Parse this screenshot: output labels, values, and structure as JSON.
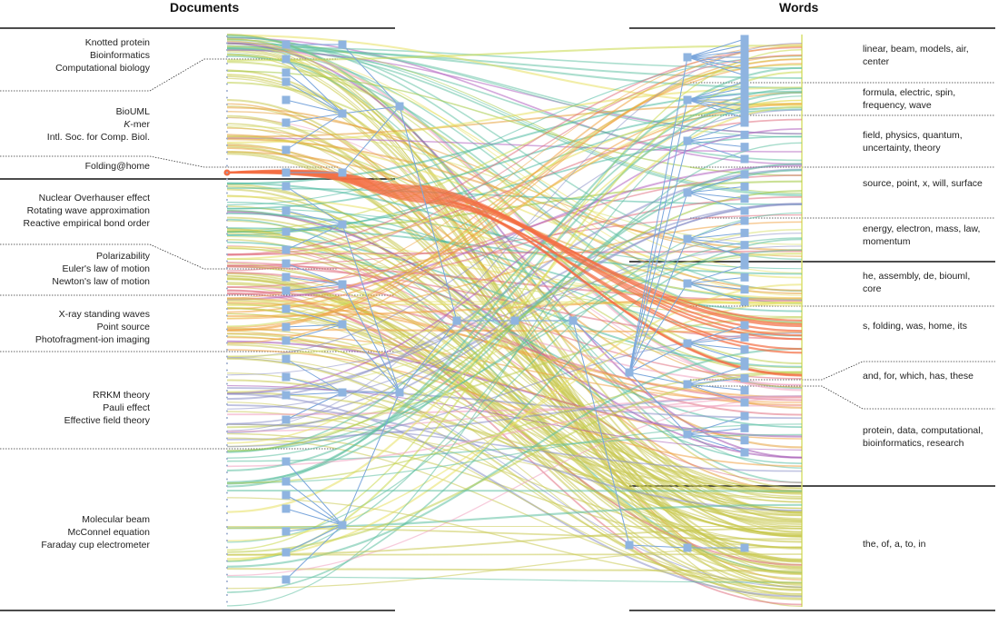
{
  "headers": {
    "documents": "Documents",
    "words": "Words"
  },
  "document_groups": [
    {
      "labels": [
        "Knotted protein",
        "Bioinformatics",
        "Computational biology"
      ],
      "color": "#66c2a5"
    },
    {
      "labels": [
        "BioUML",
        "K-mer",
        "Intl. Soc. for Comp. Biol."
      ],
      "color": "#e5a03a"
    },
    {
      "labels": [
        "Folding@home"
      ],
      "color": "#f46d43"
    },
    {
      "labels": [
        "Nuclear Overhauser effect",
        "Rotating wave approximation",
        "Reactive empirical bond order"
      ],
      "color": "#4cb9a0"
    },
    {
      "labels": [
        "Polarizability",
        "Euler's law of motion",
        "Newton's law of motion"
      ],
      "color": "#e07080"
    },
    {
      "labels": [
        "X-ray standing waves",
        "Point source",
        "Photofragment-ion imaging"
      ],
      "color": "#f0a040"
    },
    {
      "labels": [
        "RRKM theory",
        "Pauli effect",
        "Effective field theory"
      ],
      "color": "#8a8fc8"
    },
    {
      "labels": [
        "Molecular beam",
        "McConnel equation",
        "Faraday cup electrometer"
      ],
      "color": "#5cc0a0"
    }
  ],
  "word_groups": [
    {
      "label": "linear, beam, models, air, center",
      "color": "#c8d84a"
    },
    {
      "label": "formula, electric, spin, frequency, wave",
      "color": "#e8e060"
    },
    {
      "label": "field, physics, quantum, uncertainty, theory",
      "color": "#b060c0"
    },
    {
      "label": "source, point, x, will, surface",
      "color": "#a0c840"
    },
    {
      "label": "energy, electron, mass, law, momentum",
      "color": "#d8e070"
    },
    {
      "label": "he, assembly, de, biouml, core",
      "color": "#e8e060"
    },
    {
      "label": "s, folding, was, home, its",
      "color": "#c0d050"
    },
    {
      "label": "and, for, which, has, these",
      "color": "#f0a0c0"
    },
    {
      "label": "protein, data, computational, bioinformatics, research",
      "color": "#a050b0"
    },
    {
      "label": "the, of, a, to, in",
      "color": "#c8c840"
    }
  ],
  "colors": {
    "hierarchy_node": "#8fb4e0",
    "hierarchy_edge": "#7aa6dc",
    "dominant_bundle": "#c8c850",
    "folding_bundle": "#f46d43"
  }
}
